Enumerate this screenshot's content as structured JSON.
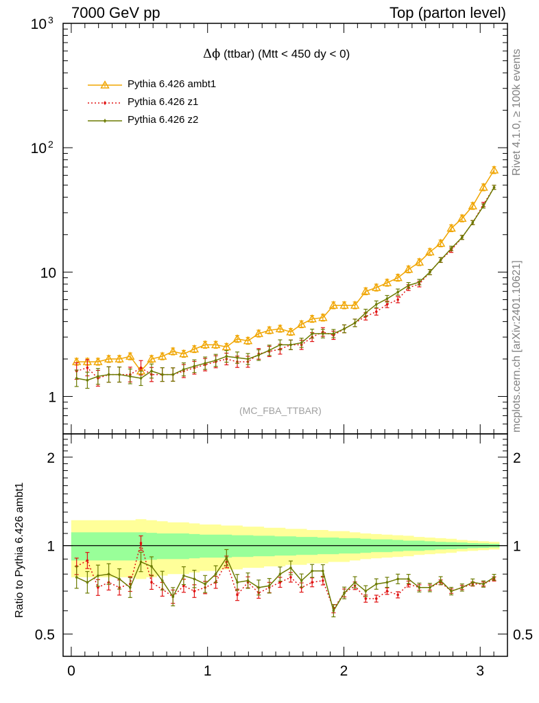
{
  "header": {
    "left": "7000 GeV pp",
    "right": "Top (parton level)"
  },
  "title": {
    "symbol": "Δϕ",
    "text": " (ttbar) (Mtt < 450 dy < 0)"
  },
  "side_labels": {
    "rivet": "Rivet 4.1.0, ≥ 100k events",
    "mcplots": "mcplots.cern.ch [arXiv:2401.10621]"
  },
  "analysis_tag": "(MC_FBA_TTBAR)",
  "ratio_ylabel": "Ratio to Pythia 6.426 ambt1",
  "colors": {
    "ambt1": "#f0a500",
    "z1": "#e01010",
    "z2": "#6b7a00",
    "band_inner": "#99ff99",
    "band_outer": "#ffff99"
  },
  "chart_data": {
    "type": "line",
    "title": "Δϕ (ttbar) (Mtt < 450 dy < 0)",
    "xlabel": "",
    "ylabel": "",
    "x": [
      0.039,
      0.118,
      0.196,
      0.275,
      0.353,
      0.432,
      0.511,
      0.589,
      0.668,
      0.746,
      0.825,
      0.903,
      0.982,
      1.06,
      1.139,
      1.218,
      1.296,
      1.375,
      1.453,
      1.532,
      1.61,
      1.689,
      1.767,
      1.846,
      1.924,
      2.003,
      2.081,
      2.16,
      2.238,
      2.317,
      2.396,
      2.474,
      2.553,
      2.631,
      2.71,
      2.788,
      2.867,
      2.945,
      3.024,
      3.102
    ],
    "main": {
      "yscale": "log",
      "ylim": [
        0.5,
        1000
      ],
      "yticks": [
        {
          "value": 1,
          "label": "1"
        },
        {
          "value": 10,
          "label": "10"
        },
        {
          "value": 100,
          "label": "10",
          "sup": "2"
        },
        {
          "value": 1000,
          "label": "10",
          "sup": "3"
        }
      ],
      "series": [
        {
          "name": "Pythia 6.426 ambt1",
          "key": "ambt1",
          "marker": "triangle",
          "dashed": false,
          "values": [
            1.9,
            1.9,
            1.9,
            2.0,
            2.0,
            2.1,
            1.6,
            2.0,
            2.1,
            2.3,
            2.2,
            2.4,
            2.6,
            2.6,
            2.5,
            2.9,
            2.8,
            3.2,
            3.4,
            3.5,
            3.3,
            3.8,
            4.2,
            4.3,
            5.4,
            5.4,
            5.4,
            7.0,
            7.5,
            8.2,
            9.0,
            10.5,
            12.0,
            14.5,
            17.0,
            22.5,
            27.0,
            34.0,
            48.0,
            66.0
          ]
        },
        {
          "name": "Pythia 6.426 z1",
          "key": "z1",
          "marker": "dot",
          "dashed": true,
          "values": [
            1.6,
            1.7,
            1.4,
            1.5,
            1.5,
            1.5,
            1.7,
            1.5,
            1.5,
            1.5,
            1.6,
            1.7,
            1.8,
            1.9,
            2.0,
            1.9,
            1.9,
            2.2,
            2.3,
            2.4,
            2.6,
            2.6,
            3.0,
            3.3,
            3.1,
            3.5,
            3.9,
            4.4,
            4.8,
            5.5,
            6.0,
            7.5,
            8.0,
            10.0,
            12.5,
            15.0,
            19.0,
            25.0,
            35.0,
            48.0
          ]
        },
        {
          "name": "Pythia 6.426 z2",
          "key": "z2",
          "marker": "dot",
          "dashed": false,
          "values": [
            1.4,
            1.35,
            1.45,
            1.5,
            1.5,
            1.45,
            1.4,
            1.6,
            1.5,
            1.5,
            1.65,
            1.75,
            1.85,
            1.95,
            2.1,
            2.05,
            2.0,
            2.15,
            2.35,
            2.6,
            2.6,
            2.7,
            3.2,
            3.2,
            3.2,
            3.5,
            3.9,
            4.7,
            5.5,
            6.1,
            6.9,
            7.8,
            8.3,
            10.0,
            12.5,
            15.5,
            19.0,
            25.0,
            34.0,
            48.0
          ]
        }
      ]
    },
    "ratio": {
      "yscale": "log",
      "ylim": [
        0.42,
        2.4
      ],
      "yticks": [
        {
          "value": 0.5,
          "label": "0.5"
        },
        {
          "value": 1,
          "label": "1"
        },
        {
          "value": 2,
          "label": "2"
        }
      ],
      "series": [
        {
          "name": "Pythia 6.426 z1",
          "key": "z1",
          "dashed": true,
          "values": [
            0.85,
            0.89,
            0.72,
            0.75,
            0.72,
            0.74,
            1.02,
            0.75,
            0.71,
            0.67,
            0.73,
            0.7,
            0.72,
            0.75,
            0.88,
            0.68,
            0.75,
            0.69,
            0.72,
            0.75,
            0.78,
            0.72,
            0.75,
            0.76,
            0.61,
            0.69,
            0.73,
            0.66,
            0.66,
            0.7,
            0.68,
            0.74,
            0.72,
            0.72,
            0.75,
            0.7,
            0.72,
            0.74,
            0.74,
            0.77
          ]
        },
        {
          "name": "Pythia 6.426 z2",
          "key": "z2",
          "dashed": false,
          "values": [
            0.78,
            0.75,
            0.79,
            0.8,
            0.77,
            0.72,
            0.88,
            0.85,
            0.76,
            0.67,
            0.79,
            0.77,
            0.74,
            0.8,
            0.91,
            0.75,
            0.76,
            0.72,
            0.73,
            0.8,
            0.84,
            0.76,
            0.82,
            0.82,
            0.6,
            0.69,
            0.75,
            0.7,
            0.74,
            0.75,
            0.77,
            0.77,
            0.72,
            0.72,
            0.76,
            0.7,
            0.72,
            0.75,
            0.74,
            0.78
          ]
        }
      ],
      "band_inner": [
        0.11,
        0.11,
        0.11,
        0.11,
        0.11,
        0.11,
        0.11,
        0.105,
        0.1,
        0.1,
        0.1,
        0.095,
        0.09,
        0.09,
        0.09,
        0.085,
        0.085,
        0.08,
        0.08,
        0.075,
        0.075,
        0.07,
        0.07,
        0.065,
        0.065,
        0.06,
        0.06,
        0.055,
        0.05,
        0.05,
        0.045,
        0.04,
        0.04,
        0.035,
        0.03,
        0.028,
        0.025,
        0.02,
        0.018,
        0.015
      ],
      "band_outer": [
        0.22,
        0.22,
        0.22,
        0.22,
        0.22,
        0.22,
        0.23,
        0.22,
        0.21,
        0.2,
        0.2,
        0.19,
        0.18,
        0.18,
        0.17,
        0.17,
        0.16,
        0.16,
        0.15,
        0.15,
        0.14,
        0.14,
        0.13,
        0.13,
        0.12,
        0.12,
        0.11,
        0.1,
        0.095,
        0.09,
        0.085,
        0.08,
        0.07,
        0.065,
        0.06,
        0.055,
        0.045,
        0.04,
        0.035,
        0.03
      ]
    },
    "xlim": [
      -0.06,
      3.2
    ],
    "xticks": [
      {
        "value": 0,
        "label": "0"
      },
      {
        "value": 1,
        "label": "1"
      },
      {
        "value": 2,
        "label": "2"
      },
      {
        "value": 3,
        "label": "3"
      }
    ],
    "legend": [
      {
        "label": "Pythia 6.426 ambt1",
        "key": "ambt1",
        "marker": "triangle",
        "dashed": false
      },
      {
        "label": "Pythia 6.426 z1",
        "key": "z1",
        "marker": "dot",
        "dashed": true
      },
      {
        "label": "Pythia 6.426 z2",
        "key": "z2",
        "marker": "dot",
        "dashed": false
      }
    ]
  }
}
